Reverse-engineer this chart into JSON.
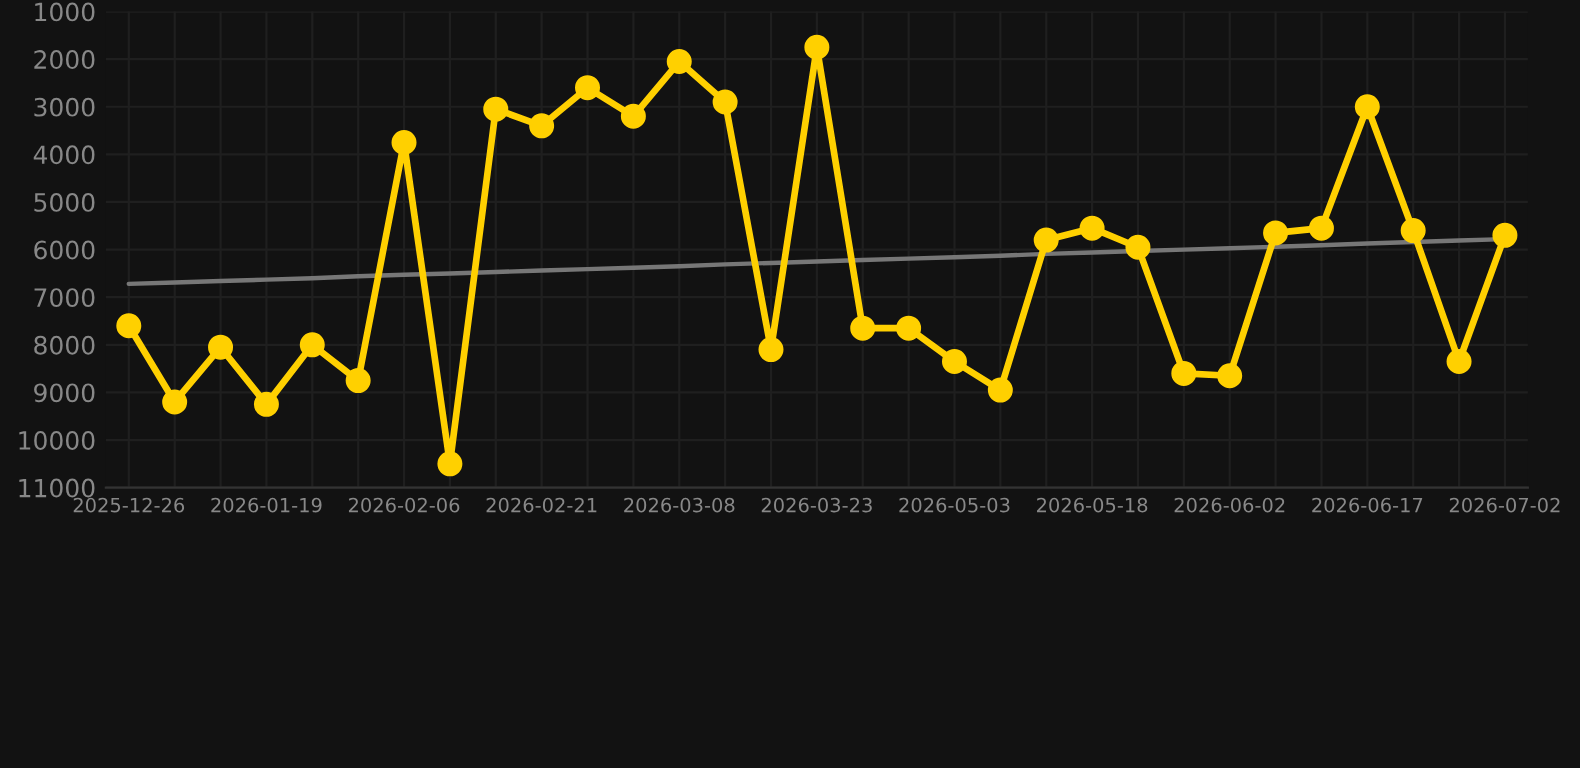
{
  "chart_data": {
    "type": "line",
    "categories": [
      "2025-12-26",
      null,
      null,
      "2026-01-19",
      null,
      null,
      "2026-02-06",
      null,
      null,
      "2026-02-21",
      null,
      null,
      "2026-03-08",
      null,
      null,
      "2026-03-23",
      null,
      null,
      "2026-05-03",
      null,
      null,
      "2026-05-18",
      null,
      null,
      "2026-06-02",
      null,
      null,
      "2026-06-17",
      null,
      null,
      "2026-07-02"
    ],
    "series": [
      {
        "color": "#ffd000",
        "values": [
          7600,
          9200,
          8050,
          9250,
          8000,
          8750,
          3750,
          10500,
          3050,
          3400,
          2600,
          3200,
          2050,
          2900,
          8100,
          1750,
          7650,
          7650,
          8350,
          8950,
          5800,
          5550,
          5950,
          8600,
          8650,
          5650,
          5550,
          3000,
          5600,
          8350,
          5700
        ]
      },
      {
        "type": "line",
        "color": "#777777",
        "marker": "none",
        "values": [
          6720,
          6690,
          6660,
          6630,
          6600,
          6560,
          6530,
          6500,
          6470,
          6440,
          6410,
          6380,
          6350,
          6310,
          6280,
          6250,
          6220,
          6190,
          6160,
          6130,
          6090,
          6060,
          6030,
          6000,
          5970,
          5940,
          5910,
          5870,
          5840,
          5810,
          5780
        ]
      }
    ],
    "ylim": [
      11000,
      1000
    ],
    "yticks": [
      1000,
      2000,
      3000,
      4000,
      5000,
      6000,
      7000,
      8000,
      9000,
      10000,
      11000
    ],
    "grid": true,
    "marker": "circle",
    "line_style": "solid"
  }
}
